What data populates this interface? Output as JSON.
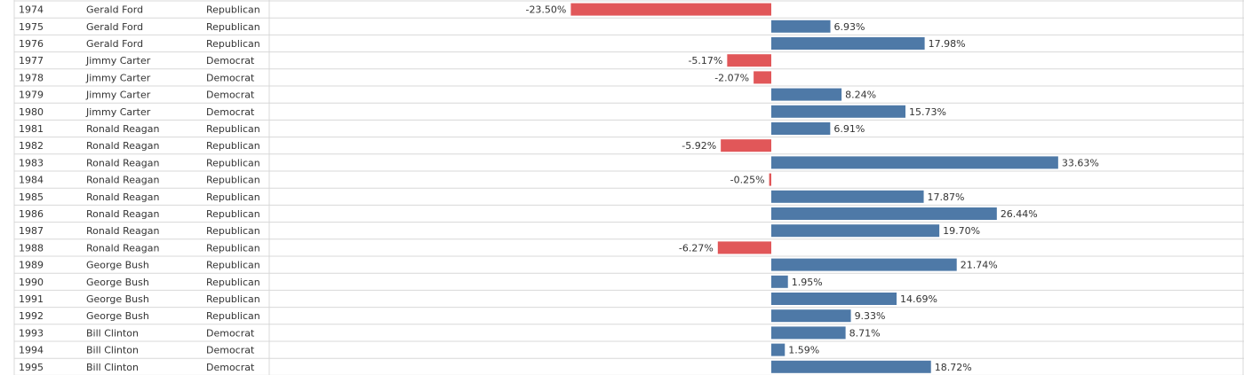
{
  "chart_data": {
    "type": "bar",
    "orientation": "horizontal",
    "categories": [
      "1974",
      "1975",
      "1976",
      "1977",
      "1978",
      "1979",
      "1980",
      "1981",
      "1982",
      "1983",
      "1984",
      "1985",
      "1986",
      "1987",
      "1988",
      "1989",
      "1990",
      "1991",
      "1992",
      "1993",
      "1994",
      "1995"
    ],
    "presidents": [
      "Gerald Ford",
      "Gerald Ford",
      "Gerald Ford",
      "Jimmy Carter",
      "Jimmy Carter",
      "Jimmy Carter",
      "Jimmy Carter",
      "Ronald Reagan",
      "Ronald Reagan",
      "Ronald Reagan",
      "Ronald Reagan",
      "Ronald Reagan",
      "Ronald Reagan",
      "Ronald Reagan",
      "Ronald Reagan",
      "George Bush",
      "George Bush",
      "George Bush",
      "George Bush",
      "Bill Clinton",
      "Bill Clinton",
      "Bill Clinton"
    ],
    "parties": [
      "Republican",
      "Republican",
      "Republican",
      "Democrat",
      "Democrat",
      "Democrat",
      "Democrat",
      "Republican",
      "Republican",
      "Republican",
      "Republican",
      "Republican",
      "Republican",
      "Republican",
      "Republican",
      "Republican",
      "Republican",
      "Republican",
      "Republican",
      "Democrat",
      "Democrat",
      "Democrat"
    ],
    "values": [
      -23.5,
      6.93,
      17.98,
      -5.17,
      -2.07,
      8.24,
      15.73,
      6.91,
      -5.92,
      33.63,
      -0.25,
      17.87,
      26.44,
      19.7,
      -6.27,
      21.74,
      1.95,
      14.69,
      9.33,
      8.71,
      1.59,
      18.72
    ],
    "value_labels": [
      "-23.50%",
      "6.93%",
      "17.98%",
      "-5.17%",
      "-2.07%",
      "8.24%",
      "15.73%",
      "6.91%",
      "-5.92%",
      "33.63%",
      "-0.25%",
      "17.87%",
      "26.44%",
      "19.70%",
      "-6.27%",
      "21.74%",
      "1.95%",
      "14.69%",
      "9.33%",
      "8.71%",
      "1.59%",
      "18.72%"
    ],
    "colors": {
      "positive": "#4e79a7",
      "negative": "#e15759"
    },
    "grid": true
  }
}
